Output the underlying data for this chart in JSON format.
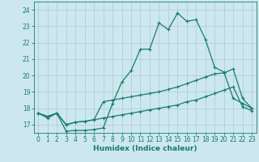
{
  "xlabel": "Humidex (Indice chaleur)",
  "x": [
    0,
    1,
    2,
    3,
    4,
    5,
    6,
    7,
    8,
    9,
    10,
    11,
    12,
    13,
    14,
    15,
    16,
    17,
    18,
    19,
    20,
    21,
    22,
    23
  ],
  "line1": [
    17.7,
    17.4,
    17.7,
    16.6,
    16.65,
    16.65,
    16.7,
    16.8,
    18.3,
    19.6,
    20.3,
    21.6,
    21.6,
    23.2,
    22.8,
    23.8,
    23.3,
    23.4,
    22.2,
    20.5,
    20.2,
    18.6,
    18.3,
    18.0
  ],
  "line2": [
    17.7,
    17.5,
    17.7,
    17.0,
    17.15,
    17.2,
    17.3,
    18.4,
    18.5,
    18.6,
    18.7,
    18.8,
    18.9,
    19.0,
    19.15,
    19.3,
    19.5,
    19.7,
    19.9,
    20.1,
    20.15,
    20.4,
    18.6,
    18.0
  ],
  "line3": [
    17.7,
    17.5,
    17.7,
    17.0,
    17.15,
    17.2,
    17.3,
    17.4,
    17.5,
    17.6,
    17.7,
    17.8,
    17.9,
    18.0,
    18.1,
    18.2,
    18.4,
    18.5,
    18.7,
    18.9,
    19.1,
    19.3,
    18.1,
    17.85
  ],
  "bg_color": "#cce8ee",
  "grid_color": "#aacccc",
  "line_color": "#1a7b6e",
  "ylim": [
    16.5,
    24.5
  ],
  "xlim": [
    -0.5,
    23.5
  ],
  "yticks": [
    17,
    18,
    19,
    20,
    21,
    22,
    23,
    24
  ],
  "xticks": [
    0,
    1,
    2,
    3,
    4,
    5,
    6,
    7,
    8,
    9,
    10,
    11,
    12,
    13,
    14,
    15,
    16,
    17,
    18,
    19,
    20,
    21,
    22,
    23
  ],
  "tick_fontsize": 5.5,
  "label_fontsize": 6.5
}
